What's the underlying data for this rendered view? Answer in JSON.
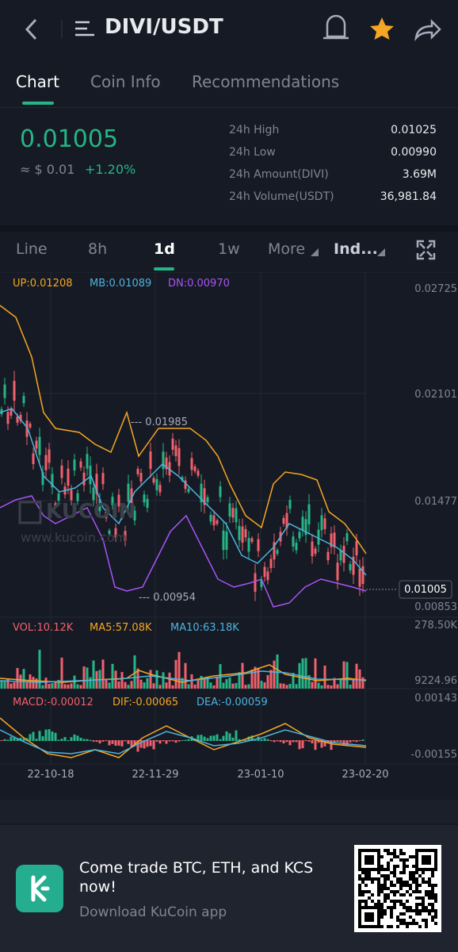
{
  "header": {
    "title": "DIVI/USDT"
  },
  "tabs": [
    "Chart",
    "Coin Info",
    "Recommendations"
  ],
  "price": {
    "last": "0.01005",
    "usd": "≈ $ 0.01",
    "change": "+1.20%"
  },
  "stats": [
    {
      "label": "24h High",
      "value": "0.01025"
    },
    {
      "label": "24h Low",
      "value": "0.00990"
    },
    {
      "label": "24h Amount(DIVI)",
      "value": "3.69M"
    },
    {
      "label": "24h Volume(USDT)",
      "value": "36,981.84"
    }
  ],
  "intervals": [
    "Line",
    "8h",
    "1d",
    "1w",
    "More",
    "Ind..."
  ],
  "chart": {
    "legend": [
      "UP:0.01208",
      "MB:0.01089",
      "DN:0.00970"
    ],
    "price_axis": [
      "0.02725",
      "0.02101",
      "0.01477",
      "0.00853"
    ],
    "current_price": "0.01005",
    "annotations": [
      "--- 0.01985",
      "--- 0.00954"
    ],
    "watermark": {
      "brand": "KUCOIN",
      "url": "www.kucoin.com"
    },
    "volume_legend": [
      "VOL:10.12K",
      "MA5:57.08K",
      "MA10:63.18K"
    ],
    "volume_axis": [
      "278.50K",
      "9224.96"
    ],
    "macd_legend": [
      "MACD:-0.00012",
      "DIF:-0.00065",
      "DEA:-0.00059"
    ],
    "macd_axis": [
      "0.00143",
      "-0.00155"
    ],
    "dates": [
      "22-10-18",
      "22-11-29",
      "23-01-10",
      "23-02-20"
    ]
  },
  "banner": {
    "headline": "Come trade BTC, ETH, and KCS now!",
    "sub": "Download KuCoin app"
  }
}
